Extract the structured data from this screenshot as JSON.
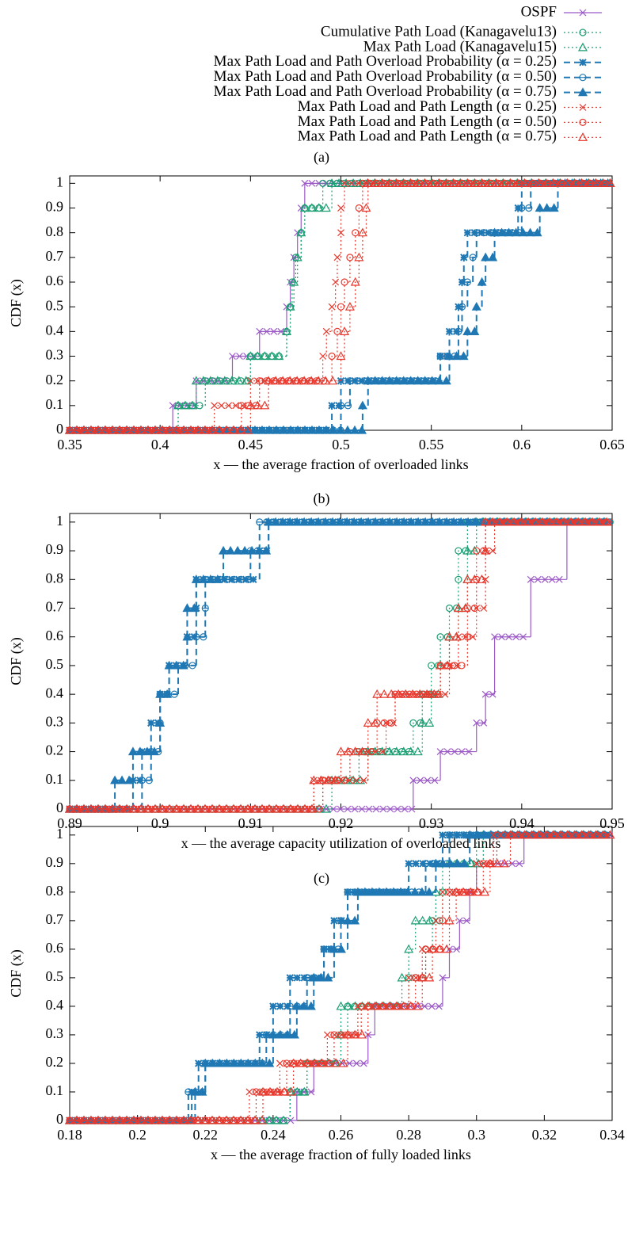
{
  "legend": {
    "items": [
      {
        "name": "OSPF",
        "color": "#9b59c6",
        "marker": "cross",
        "dash": "solid"
      },
      {
        "name": "Cumulative Path Load (Kanagavelu13)",
        "color": "#1a9e72",
        "marker": "circle",
        "dash": "dotted"
      },
      {
        "name": "Max Path Load (Kanagavelu15)",
        "color": "#1a9e72",
        "marker": "triangle",
        "dash": "dotted"
      },
      {
        "name": "Max Path Load and Path Overload Probability (α = 0.25)",
        "color": "#1f78b4",
        "marker": "star",
        "dash": "dashed"
      },
      {
        "name": "Max Path Load and Path Overload Probability (α = 0.50)",
        "color": "#1f78b4",
        "marker": "circleline",
        "dash": "dashed"
      },
      {
        "name": "Max Path Load and Path Overload Probability (α = 0.75)",
        "color": "#1f78b4",
        "marker": "trianglefilled",
        "dash": "dashed"
      },
      {
        "name": "Max Path Load and Path Length (α = 0.25)",
        "color": "#e8382d",
        "marker": "cross",
        "dash": "dotted"
      },
      {
        "name": "Max Path Load and Path Length (α = 0.50)",
        "color": "#e8382d",
        "marker": "circle",
        "dash": "dotted"
      },
      {
        "name": "Max Path Load and Path Length (α = 0.75)",
        "color": "#e8382d",
        "marker": "triangle",
        "dash": "dotted"
      }
    ]
  },
  "chart_data": [
    {
      "type": "step",
      "caption": "(a)",
      "x_label": "x — the average fraction of overloaded links",
      "y_label": "CDF (x)",
      "xlim": [
        0.35,
        0.65
      ],
      "xticks": [
        0.35,
        0.4,
        0.45,
        0.5,
        0.55,
        0.6,
        0.65
      ],
      "ylim": [
        0,
        1.03
      ],
      "yticks": [
        0,
        0.1,
        0.2,
        0.3,
        0.4,
        0.5,
        0.6,
        0.7,
        0.8,
        0.9,
        1
      ],
      "series": [
        {
          "x": [
            0.407,
            0.42,
            0.44,
            0.455,
            0.47,
            0.472,
            0.474,
            0.476,
            0.478,
            0.48
          ],
          "values": [
            0.1,
            0.2,
            0.3,
            0.4,
            0.5,
            0.6,
            0.7,
            0.8,
            0.9,
            1
          ]
        },
        {
          "x": [
            0.41,
            0.425,
            0.45,
            0.47,
            0.472,
            0.473,
            0.475,
            0.478,
            0.48,
            0.49
          ],
          "values": [
            0.1,
            0.2,
            0.3,
            0.4,
            0.5,
            0.6,
            0.7,
            0.8,
            0.9,
            1
          ]
        },
        {
          "x": [
            0.41,
            0.42,
            0.45,
            0.47,
            0.472,
            0.474,
            0.476,
            0.478,
            0.48,
            0.495
          ],
          "values": [
            0.1,
            0.2,
            0.3,
            0.4,
            0.5,
            0.6,
            0.7,
            0.8,
            0.9,
            1
          ]
        },
        {
          "x": [
            0.495,
            0.5,
            0.555,
            0.56,
            0.565,
            0.567,
            0.568,
            0.57,
            0.598,
            0.6
          ],
          "values": [
            0.1,
            0.2,
            0.3,
            0.4,
            0.5,
            0.6,
            0.7,
            0.8,
            0.9,
            1
          ]
        },
        {
          "x": [
            0.5,
            0.505,
            0.555,
            0.565,
            0.567,
            0.57,
            0.573,
            0.575,
            0.6,
            0.605
          ],
          "values": [
            0.1,
            0.2,
            0.3,
            0.4,
            0.5,
            0.6,
            0.7,
            0.8,
            0.9,
            1
          ]
        },
        {
          "x": [
            0.512,
            0.515,
            0.56,
            0.57,
            0.575,
            0.578,
            0.58,
            0.585,
            0.61,
            0.62
          ],
          "values": [
            0.1,
            0.2,
            0.3,
            0.4,
            0.5,
            0.6,
            0.7,
            0.8,
            0.9,
            1
          ]
        },
        {
          "x": [
            0.43,
            0.45,
            0.49,
            0.492,
            0.495,
            0.497,
            0.498,
            0.5,
            0.5,
            0.502
          ],
          "values": [
            0.1,
            0.2,
            0.3,
            0.4,
            0.5,
            0.6,
            0.7,
            0.8,
            0.9,
            1
          ]
        },
        {
          "x": [
            0.445,
            0.455,
            0.495,
            0.498,
            0.5,
            0.502,
            0.505,
            0.508,
            0.51,
            0.512
          ],
          "values": [
            0.1,
            0.2,
            0.3,
            0.4,
            0.5,
            0.6,
            0.7,
            0.8,
            0.9,
            1
          ]
        },
        {
          "x": [
            0.45,
            0.46,
            0.5,
            0.502,
            0.505,
            0.508,
            0.51,
            0.512,
            0.514,
            0.515
          ],
          "values": [
            0.1,
            0.2,
            0.3,
            0.4,
            0.5,
            0.6,
            0.7,
            0.8,
            0.9,
            1
          ]
        }
      ]
    },
    {
      "type": "step",
      "caption": "(b)",
      "x_label": "x — the average capacity utilization of overloaded links",
      "y_label": "CDF (x)",
      "xlim": [
        0.89,
        0.95
      ],
      "xticks": [
        0.89,
        0.9,
        0.91,
        0.92,
        0.93,
        0.94,
        0.95
      ],
      "ylim": [
        0,
        1.03
      ],
      "yticks": [
        0,
        0.1,
        0.2,
        0.3,
        0.4,
        0.5,
        0.6,
        0.7,
        0.8,
        0.9,
        1
      ],
      "series": [
        {
          "x": [
            0.928,
            0.931,
            0.935,
            0.936,
            0.937,
            0.941,
            0.945
          ],
          "values": [
            0.1,
            0.2,
            0.3,
            0.4,
            0.6,
            0.8,
            1
          ]
        },
        {
          "x": [
            0.918,
            0.922,
            0.928,
            0.929,
            0.93,
            0.931,
            0.932,
            0.933,
            0.933,
            0.934
          ],
          "values": [
            0.1,
            0.2,
            0.3,
            0.4,
            0.5,
            0.6,
            0.7,
            0.8,
            0.9,
            1
          ]
        },
        {
          "x": [
            0.919,
            0.923,
            0.929,
            0.93,
            0.931,
            0.932,
            0.933,
            0.934,
            0.934,
            0.935
          ],
          "values": [
            0.1,
            0.2,
            0.3,
            0.4,
            0.5,
            0.6,
            0.7,
            0.8,
            0.9,
            1
          ]
        },
        {
          "x": [
            0.897,
            0.898,
            0.899,
            0.9,
            0.901,
            0.903,
            0.904,
            0.904,
            0.911,
            0.912
          ],
          "values": [
            0.1,
            0.2,
            0.3,
            0.4,
            0.5,
            0.6,
            0.7,
            0.8,
            0.9,
            1
          ]
        },
        {
          "x": [
            0.898,
            0.899,
            0.9,
            0.9,
            0.902,
            0.904,
            0.905,
            0.905,
            0.91,
            0.911
          ],
          "values": [
            0.1,
            0.2,
            0.3,
            0.4,
            0.5,
            0.6,
            0.7,
            0.8,
            0.9,
            1
          ]
        },
        {
          "x": [
            0.895,
            0.897,
            0.9,
            0.9,
            0.901,
            0.903,
            0.903,
            0.904,
            0.907,
            0.912
          ],
          "values": [
            0.1,
            0.2,
            0.3,
            0.4,
            0.5,
            0.6,
            0.7,
            0.8,
            0.9,
            1
          ]
        },
        {
          "x": [
            0.917,
            0.923,
            0.925,
            0.926,
            0.932,
            0.933,
            0.935,
            0.936,
            0.936,
            0.937
          ],
          "values": [
            0.1,
            0.2,
            0.3,
            0.4,
            0.5,
            0.6,
            0.7,
            0.8,
            0.9,
            1
          ]
        },
        {
          "x": [
            0.918,
            0.921,
            0.924,
            0.926,
            0.931,
            0.934,
            0.934,
            0.935,
            0.935,
            0.936
          ],
          "values": [
            0.1,
            0.2,
            0.3,
            0.4,
            0.5,
            0.6,
            0.7,
            0.8,
            0.9,
            1
          ]
        },
        {
          "x": [
            0.917,
            0.92,
            0.923,
            0.924,
            0.931,
            0.932,
            0.933,
            0.934,
            0.936,
            0.936
          ],
          "values": [
            0.1,
            0.2,
            0.3,
            0.4,
            0.5,
            0.6,
            0.7,
            0.8,
            0.9,
            1
          ]
        }
      ]
    },
    {
      "type": "step",
      "caption": "(c)",
      "x_label": "x — the average fraction of fully loaded links",
      "y_label": "CDF (x)",
      "xlim": [
        0.18,
        0.34
      ],
      "xticks": [
        0.18,
        0.2,
        0.22,
        0.24,
        0.26,
        0.28,
        0.3,
        0.32,
        0.34
      ],
      "ylim": [
        0,
        1.03
      ],
      "yticks": [
        0,
        0.1,
        0.2,
        0.3,
        0.4,
        0.5,
        0.6,
        0.7,
        0.8,
        0.9,
        1
      ],
      "series": [
        {
          "x": [
            0.247,
            0.252,
            0.268,
            0.27,
            0.29,
            0.292,
            0.295,
            0.298,
            0.3,
            0.314
          ],
          "values": [
            0.1,
            0.2,
            0.3,
            0.4,
            0.5,
            0.6,
            0.7,
            0.8,
            0.9,
            1
          ]
        },
        {
          "x": [
            0.245,
            0.25,
            0.26,
            0.262,
            0.28,
            0.285,
            0.287,
            0.29,
            0.292,
            0.3
          ],
          "values": [
            0.1,
            0.2,
            0.3,
            0.4,
            0.5,
            0.6,
            0.7,
            0.8,
            0.9,
            1
          ]
        },
        {
          "x": [
            0.245,
            0.25,
            0.26,
            0.26,
            0.278,
            0.28,
            0.282,
            0.288,
            0.29,
            0.302
          ],
          "values": [
            0.1,
            0.2,
            0.3,
            0.4,
            0.5,
            0.6,
            0.7,
            0.8,
            0.9,
            1
          ]
        },
        {
          "x": [
            0.216,
            0.218,
            0.236,
            0.24,
            0.245,
            0.255,
            0.258,
            0.262,
            0.28,
            0.29
          ],
          "values": [
            0.1,
            0.2,
            0.3,
            0.4,
            0.5,
            0.6,
            0.7,
            0.8,
            0.9,
            1
          ]
        },
        {
          "x": [
            0.215,
            0.22,
            0.238,
            0.245,
            0.25,
            0.255,
            0.26,
            0.262,
            0.285,
            0.292
          ],
          "values": [
            0.1,
            0.2,
            0.3,
            0.4,
            0.5,
            0.6,
            0.7,
            0.8,
            0.9,
            1
          ]
        },
        {
          "x": [
            0.217,
            0.22,
            0.24,
            0.247,
            0.252,
            0.258,
            0.262,
            0.265,
            0.288,
            0.298
          ],
          "values": [
            0.1,
            0.2,
            0.3,
            0.4,
            0.5,
            0.6,
            0.7,
            0.8,
            0.9,
            1
          ]
        },
        {
          "x": [
            0.233,
            0.242,
            0.256,
            0.265,
            0.28,
            0.284,
            0.288,
            0.29,
            0.3,
            0.305
          ],
          "values": [
            0.1,
            0.2,
            0.3,
            0.4,
            0.5,
            0.6,
            0.7,
            0.8,
            0.9,
            1
          ]
        },
        {
          "x": [
            0.235,
            0.244,
            0.258,
            0.266,
            0.282,
            0.285,
            0.29,
            0.292,
            0.302,
            0.306
          ],
          "values": [
            0.1,
            0.2,
            0.3,
            0.4,
            0.5,
            0.6,
            0.7,
            0.8,
            0.9,
            1
          ]
        },
        {
          "x": [
            0.237,
            0.246,
            0.262,
            0.268,
            0.284,
            0.287,
            0.292,
            0.294,
            0.304,
            0.31
          ],
          "values": [
            0.1,
            0.2,
            0.3,
            0.4,
            0.5,
            0.6,
            0.7,
            0.8,
            0.9,
            1
          ]
        }
      ]
    }
  ]
}
